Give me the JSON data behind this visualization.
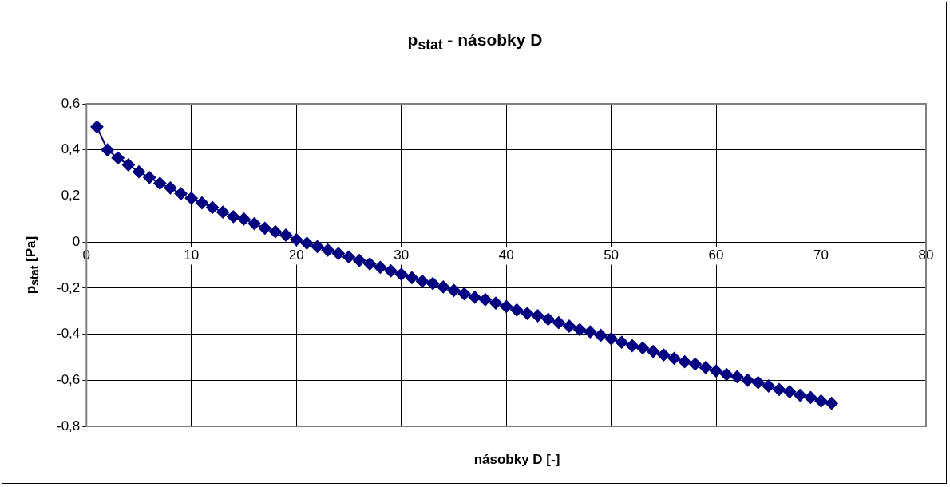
{
  "chart_data": {
    "type": "line",
    "title": "p$_{stat}$ - násobky D",
    "xlabel": "násobky D [-]",
    "ylabel": "p$_{stat}$ [Pa]",
    "x": [
      1,
      2,
      3,
      4,
      5,
      6,
      7,
      8,
      9,
      10,
      11,
      12,
      13,
      14,
      15,
      16,
      17,
      18,
      19,
      20,
      21,
      22,
      23,
      24,
      25,
      26,
      27,
      28,
      29,
      30,
      31,
      32,
      33,
      34,
      35,
      36,
      37,
      38,
      39,
      40,
      41,
      42,
      43,
      44,
      45,
      46,
      47,
      48,
      49,
      50,
      51,
      52,
      53,
      54,
      55,
      56,
      57,
      58,
      59,
      60,
      61,
      62,
      63,
      64,
      65,
      66,
      67,
      68,
      69,
      70,
      71
    ],
    "series": [
      {
        "color": "#000080",
        "values": [
          0.5,
          0.4,
          0.365,
          0.335,
          0.305,
          0.28,
          0.255,
          0.235,
          0.21,
          0.19,
          0.17,
          0.15,
          0.13,
          0.11,
          0.1,
          0.08,
          0.06,
          0.045,
          0.03,
          0.01,
          -0.005,
          -0.02,
          -0.035,
          -0.05,
          -0.065,
          -0.08,
          -0.095,
          -0.11,
          -0.125,
          -0.14,
          -0.155,
          -0.17,
          -0.18,
          -0.195,
          -0.21,
          -0.225,
          -0.24,
          -0.25,
          -0.265,
          -0.28,
          -0.295,
          -0.31,
          -0.32,
          -0.335,
          -0.35,
          -0.365,
          -0.38,
          -0.39,
          -0.405,
          -0.42,
          -0.435,
          -0.45,
          -0.46,
          -0.475,
          -0.49,
          -0.505,
          -0.52,
          -0.53,
          -0.545,
          -0.56,
          -0.575,
          -0.585,
          -0.6,
          -0.61,
          -0.625,
          -0.64,
          -0.65,
          -0.665,
          -0.675,
          -0.69,
          -0.7
        ]
      }
    ],
    "xlim": [
      0,
      80
    ],
    "xticks": [
      0,
      10,
      20,
      30,
      40,
      50,
      60,
      70,
      80
    ],
    "ylim": [
      -0.8,
      0.6
    ],
    "yticks": [
      {
        "value": -0.8,
        "label": "-0,8"
      },
      {
        "value": -0.6,
        "label": "-0,6"
      },
      {
        "value": -0.4,
        "label": "-0,4"
      },
      {
        "value": -0.2,
        "label": "-0,2"
      },
      {
        "value": 0,
        "label": "0"
      },
      {
        "value": 0.2,
        "label": "0,2"
      },
      {
        "value": 0.4,
        "label": "0,4"
      },
      {
        "value": 0.6,
        "label": "0,6"
      }
    ],
    "grid": true,
    "legend": false,
    "marker": "diamond",
    "line_style": "solid"
  }
}
